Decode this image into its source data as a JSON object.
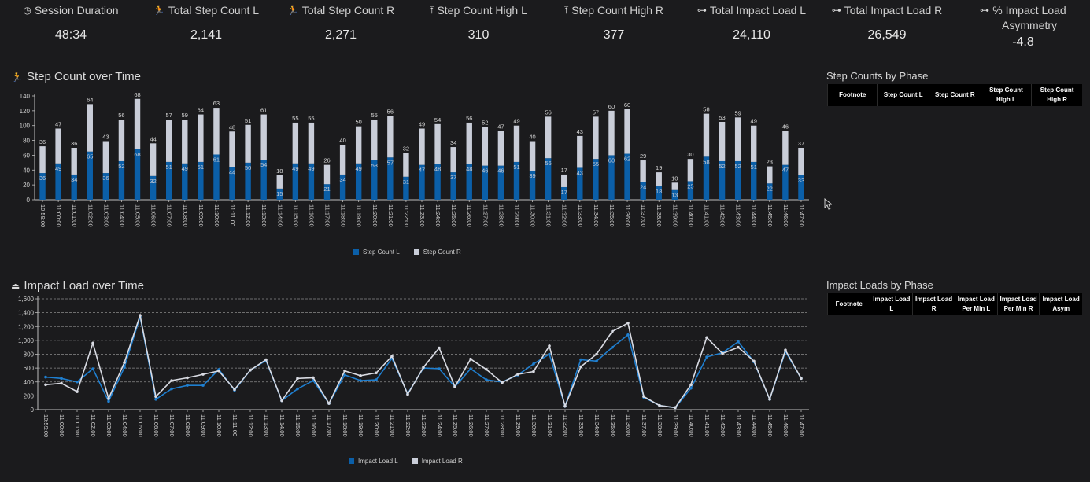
{
  "kpis": [
    {
      "icon": "clock-icon",
      "glyph": "◷",
      "label": "Session Duration",
      "value": "48:34"
    },
    {
      "icon": "runner-icon",
      "glyph": "🏃",
      "label": "Total Step Count L",
      "value": "2,141"
    },
    {
      "icon": "runner-icon",
      "glyph": "🏃",
      "label": "Total Step Count R",
      "value": "2,271"
    },
    {
      "icon": "arrow-up-bar-icon",
      "glyph": "⤒",
      "label": "Step Count High L",
      "value": "310"
    },
    {
      "icon": "arrow-up-bar-icon",
      "glyph": "⤒",
      "label": "Step Count High R",
      "value": "377"
    },
    {
      "icon": "dumbbell-icon",
      "glyph": "⊶",
      "label": "Total Impact Load L",
      "value": "24,110"
    },
    {
      "icon": "dumbbell-icon",
      "glyph": "⊶",
      "label": "Total Impact Load R",
      "value": "26,549"
    },
    {
      "icon": "dumbbell-icon",
      "glyph": "⊶",
      "label": "% Impact Load Asymmetry",
      "value": "-4.8"
    }
  ],
  "step_section": {
    "title": "Step Count over Time",
    "icon": "runner-icon",
    "glyph": "🏃"
  },
  "impact_section": {
    "title": "Impact Load over Time",
    "icon": "weight-icon",
    "glyph": "⏏"
  },
  "step_table": {
    "title": "Step Counts by Phase",
    "columns": [
      [
        "Footnote"
      ],
      [
        "Step Count L"
      ],
      [
        "Step Count R"
      ],
      [
        "Step Count",
        "High L"
      ],
      [
        "Step Count",
        "High R"
      ]
    ]
  },
  "impact_table": {
    "title": "Impact Loads by Phase",
    "columns": [
      [
        "Footnote"
      ],
      [
        "Impact Load",
        "L"
      ],
      [
        "Impact Load",
        "R"
      ],
      [
        "Impact Load",
        "Per Min L"
      ],
      [
        "Impact Load",
        "Per Min R"
      ],
      [
        "Impact Load",
        "Asym"
      ]
    ]
  },
  "colors": {
    "left": "#0b5fa8",
    "right": "#c9cdd8",
    "line_left": "#1f7fd0",
    "line_right": "#d9dbe3"
  },
  "chart_data": [
    {
      "type": "bar",
      "stacked": true,
      "categories": [
        "10:59:00",
        "11:00:00",
        "11:01:00",
        "11:02:00",
        "11:03:00",
        "11:04:00",
        "11:05:00",
        "11:06:00",
        "11:07:00",
        "11:08:00",
        "11:09:00",
        "11:10:00",
        "11:11:00",
        "11:12:00",
        "11:13:00",
        "11:14:00",
        "11:15:00",
        "11:16:00",
        "11:17:00",
        "11:18:00",
        "11:19:00",
        "11:20:00",
        "11:21:00",
        "11:22:00",
        "11:23:00",
        "11:24:00",
        "11:25:00",
        "11:26:00",
        "11:27:00",
        "11:28:00",
        "11:29:00",
        "11:30:00",
        "11:31:00",
        "11:32:00",
        "11:33:00",
        "11:34:00",
        "11:35:00",
        "11:36:00",
        "11:37:00",
        "11:38:00",
        "11:39:00",
        "11:40:00",
        "11:41:00",
        "11:42:00",
        "11:43:00",
        "11:44:00",
        "11:45:00",
        "11:46:00",
        "11:47:00"
      ],
      "series": [
        {
          "name": "Step Count L",
          "values": [
            36,
            49,
            34,
            65,
            36,
            52,
            68,
            32,
            51,
            49,
            51,
            61,
            44,
            50,
            54,
            15,
            49,
            49,
            21,
            34,
            49,
            53,
            57,
            31,
            47,
            48,
            37,
            48,
            46,
            46,
            51,
            39,
            56,
            17,
            43,
            55,
            60,
            62,
            24,
            18,
            13,
            25,
            58,
            52,
            52,
            51,
            22,
            47,
            33
          ]
        },
        {
          "name": "Step Count R",
          "values": [
            36,
            47,
            36,
            64,
            43,
            56,
            68,
            44,
            57,
            59,
            64,
            63,
            48,
            51,
            61,
            18,
            55,
            55,
            26,
            40,
            50,
            55,
            56,
            32,
            49,
            54,
            34,
            56,
            52,
            47,
            49,
            40,
            56,
            17,
            43,
            57,
            60,
            60,
            29,
            19,
            10,
            30,
            58,
            53,
            59,
            49,
            23,
            46,
            37
          ]
        }
      ],
      "ylim": [
        0,
        140
      ],
      "yticks": [
        0,
        20,
        40,
        60,
        80,
        100,
        120,
        140
      ],
      "legend": "bottom-center"
    },
    {
      "type": "line",
      "categories": [
        "10:59:00",
        "11:00:00",
        "11:01:00",
        "11:02:00",
        "11:03:00",
        "11:04:00",
        "11:05:00",
        "11:06:00",
        "11:07:00",
        "11:08:00",
        "11:09:00",
        "11:10:00",
        "11:11:00",
        "11:12:00",
        "11:13:00",
        "11:14:00",
        "11:15:00",
        "11:16:00",
        "11:17:00",
        "11:18:00",
        "11:19:00",
        "11:20:00",
        "11:21:00",
        "11:22:00",
        "11:23:00",
        "11:24:00",
        "11:25:00",
        "11:26:00",
        "11:27:00",
        "11:28:00",
        "11:29:00",
        "11:30:00",
        "11:31:00",
        "11:32:00",
        "11:33:00",
        "11:34:00",
        "11:35:00",
        "11:36:00",
        "11:37:00",
        "11:38:00",
        "11:39:00",
        "11:40:00",
        "11:41:00",
        "11:42:00",
        "11:43:00",
        "11:44:00",
        "11:45:00",
        "11:46:00",
        "11:47:00"
      ],
      "series": [
        {
          "name": "Impact Load L",
          "values": [
            470,
            450,
            400,
            590,
            120,
            610,
            1340,
            150,
            300,
            350,
            350,
            580,
            280,
            570,
            710,
            130,
            300,
            420,
            90,
            500,
            420,
            430,
            740,
            230,
            600,
            590,
            330,
            590,
            430,
            400,
            500,
            660,
            800,
            50,
            720,
            700,
            900,
            1080,
            180,
            60,
            30,
            310,
            760,
            820,
            980,
            690,
            150,
            840,
            450
          ]
        },
        {
          "name": "Impact Load R",
          "values": [
            360,
            380,
            260,
            960,
            160,
            680,
            1360,
            190,
            420,
            460,
            510,
            560,
            290,
            570,
            720,
            130,
            450,
            460,
            90,
            560,
            490,
            530,
            770,
            220,
            610,
            890,
            330,
            730,
            580,
            390,
            510,
            550,
            920,
            50,
            620,
            800,
            1130,
            1250,
            190,
            60,
            30,
            360,
            1040,
            810,
            900,
            700,
            150,
            860,
            450
          ]
        }
      ],
      "ylim": [
        0,
        1600
      ],
      "yticks": [
        0,
        200,
        400,
        600,
        800,
        1000,
        1200,
        1400,
        1600
      ],
      "yticklabels": [
        "0",
        "200",
        "400",
        "600",
        "800",
        "1,000",
        "1,200",
        "1,400",
        "1,600"
      ],
      "grid": true,
      "legend": "bottom-center"
    }
  ]
}
